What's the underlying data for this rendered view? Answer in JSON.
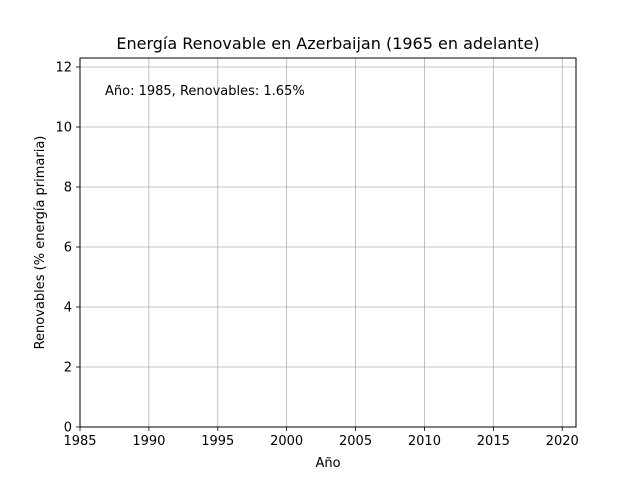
{
  "chart_data": {
    "type": "line",
    "title": "Energía Renovable en Azerbaijan (1965 en adelante)",
    "xlabel": "Año",
    "ylabel": "Renovables (% energía primaria)",
    "xlim": [
      1985,
      2021
    ],
    "ylim": [
      0,
      12.3
    ],
    "xticks": [
      1985,
      1990,
      1995,
      2000,
      2005,
      2010,
      2015,
      2020
    ],
    "yticks": [
      0,
      2,
      4,
      6,
      8,
      10,
      12
    ],
    "grid": true,
    "series": [
      {
        "x": [],
        "y": []
      }
    ],
    "annotation": "Año: 1985, Renovables: 1.65%",
    "colors": {
      "grid": "#b0b0b0",
      "axes": "#000000",
      "background": "#ffffff"
    }
  }
}
